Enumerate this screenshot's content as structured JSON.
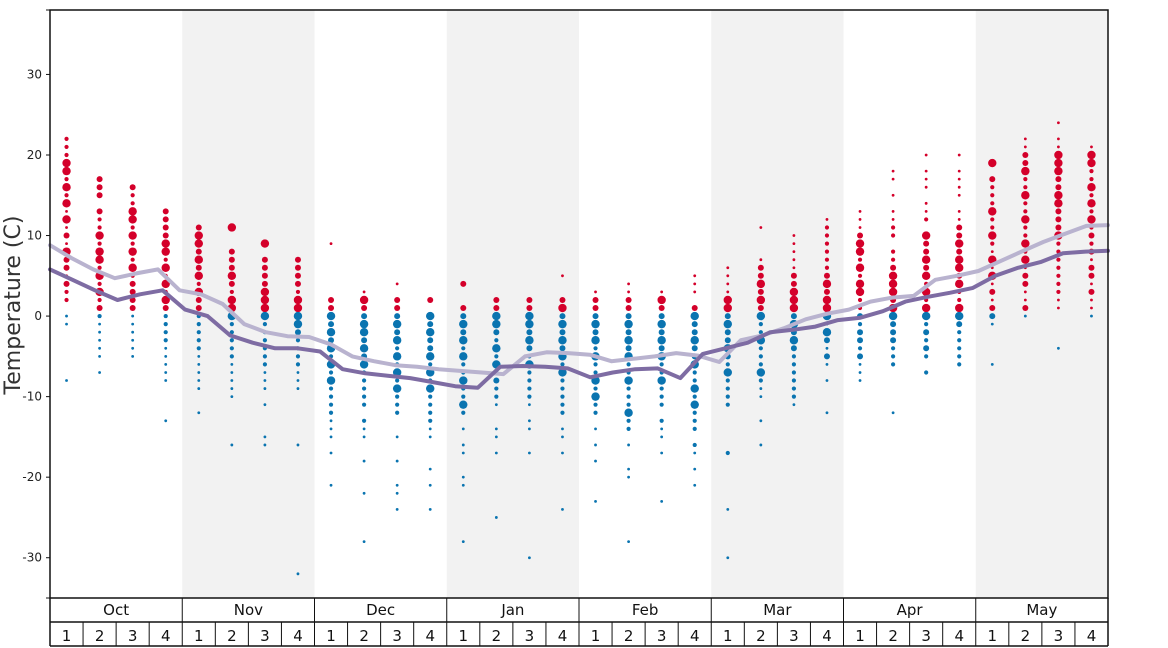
{
  "chart_data": {
    "type": "scatter",
    "title": "",
    "xlabel": "",
    "ylabel": "Temperature (C)",
    "ylim": [
      -35,
      38
    ],
    "yticks": [
      -30,
      -20,
      -10,
      0,
      10,
      20,
      30
    ],
    "grid": false,
    "colors": {
      "warm": "#d4002a",
      "cold": "#0a74b0",
      "line_light": "#b9b3cf",
      "line_dark": "#7e6ca3",
      "band": "#f2f2f2"
    },
    "months": [
      "Oct",
      "Nov",
      "Dec",
      "Jan",
      "Feb",
      "Mar",
      "Apr",
      "May"
    ],
    "weeks": [
      "1",
      "2",
      "3",
      "4"
    ],
    "series": [
      {
        "values": [
          8.8,
          7.2,
          5.8,
          4.7,
          5.3,
          5.8,
          3.2,
          2.7,
          1.5,
          -1.0,
          -2.0,
          -2.5,
          -2.6,
          -3.5,
          -5.0,
          -5.6,
          -6.1,
          -6.3,
          -6.6,
          -6.8,
          -7.0,
          -7.2,
          -5.0,
          -4.5,
          -4.6,
          -4.8,
          -5.6,
          -5.3,
          -5.0,
          -4.6,
          -4.9,
          -5.7,
          -3.0,
          -2.4,
          -1.5,
          -0.4,
          0.3,
          0.8,
          1.8,
          2.3,
          2.5,
          4.5,
          5.0,
          5.6,
          6.8,
          8.0,
          9.2,
          10.2,
          11.2,
          11.3
        ]
      },
      {
        "values": [
          5.8,
          4.5,
          3.2,
          2.0,
          2.7,
          3.2,
          0.8,
          0.0,
          -2.4,
          -3.3,
          -4.0,
          -4.0,
          -4.4,
          -6.6,
          -7.1,
          -7.4,
          -7.7,
          -8.2,
          -8.7,
          -8.9,
          -6.3,
          -6.2,
          -6.3,
          -6.5,
          -7.6,
          -7.0,
          -6.6,
          -6.5,
          -7.7,
          -4.7,
          -4.0,
          -3.3,
          -2.0,
          -1.7,
          -1.3,
          -0.5,
          -0.2,
          0.6,
          1.8,
          2.4,
          2.9,
          3.5,
          5.0,
          6.0,
          6.7,
          7.8,
          8.0,
          8.1
        ]
      }
    ],
    "points": [
      [
        [
          8,
          19,
          18,
          16,
          14,
          12,
          10,
          8,
          7,
          6,
          4,
          3,
          2,
          22,
          21,
          20,
          17,
          15,
          13,
          11,
          9,
          5,
          0,
          -1,
          -8
        ]
      ],
      [
        [
          10,
          8,
          7,
          5,
          3,
          1,
          17,
          16,
          15,
          13,
          12,
          11,
          9,
          6,
          4,
          2,
          0,
          -1,
          -2,
          -3,
          -4,
          -5,
          -7
        ]
      ],
      [
        [
          13,
          12,
          10,
          8,
          6,
          4,
          3,
          2,
          1,
          16,
          15,
          14,
          11,
          9,
          7,
          5,
          0,
          -1,
          -2,
          -3,
          -4,
          -5
        ]
      ],
      [
        [
          9,
          8,
          6,
          4,
          2,
          1,
          13,
          12,
          11,
          10,
          7,
          5,
          3,
          0,
          -1,
          -2,
          -3,
          -4,
          -5,
          -6,
          -7,
          -8,
          -13
        ]
      ],
      [
        [
          10,
          9,
          7,
          5,
          3,
          2,
          1,
          11,
          8,
          6,
          4,
          0,
          -1,
          -2,
          -3,
          -4,
          -5,
          -6,
          -7,
          -8,
          -9,
          -12
        ]
      ],
      [
        [
          5,
          2,
          1,
          0,
          11,
          8,
          7,
          6,
          4,
          3,
          -1,
          -2,
          -3,
          -4,
          -5,
          -6,
          -7,
          -8,
          -9,
          -10,
          -16
        ]
      ],
      [
        [
          3,
          2,
          1,
          0,
          9,
          7,
          6,
          5,
          4,
          -1,
          -2,
          -3,
          -4,
          -5,
          -6,
          -7,
          -8,
          -9,
          -11,
          -15,
          -16
        ]
      ],
      [
        [
          2,
          1,
          0,
          -1,
          -2,
          7,
          6,
          5,
          4,
          3,
          -3,
          -4,
          -5,
          -6,
          -7,
          -8,
          -9,
          -16,
          -32
        ]
      ],
      [
        [
          0,
          -2,
          -4,
          -6,
          -8,
          2,
          1,
          -1,
          -3,
          -5,
          -7,
          -9,
          -10,
          -11,
          -12,
          -13,
          -14,
          -15,
          -17,
          -21,
          9
        ]
      ],
      [
        [
          -1,
          -2,
          -4,
          -6,
          2,
          1,
          0,
          -3,
          -5,
          -7,
          -8,
          -9,
          -10,
          -11,
          -13,
          -14,
          -15,
          -18,
          -22,
          -28,
          3
        ]
      ],
      [
        [
          -1,
          -3,
          -5,
          -7,
          -9,
          2,
          1,
          0,
          -2,
          -4,
          -6,
          -8,
          -10,
          -11,
          -12,
          -15,
          -18,
          -21,
          -22,
          -24,
          4
        ]
      ],
      [
        [
          0,
          -2,
          -5,
          -7,
          -9,
          2,
          -1,
          -3,
          -4,
          -6,
          -8,
          -10,
          -11,
          -12,
          -13,
          -14,
          -15,
          -19,
          -21,
          -24
        ]
      ],
      [
        [
          -1,
          -3,
          -5,
          -8,
          -11,
          4,
          1,
          0,
          -2,
          -4,
          -6,
          -7,
          -9,
          -10,
          -12,
          -14,
          -16,
          -17,
          -20,
          -21,
          -28
        ]
      ],
      [
        [
          0,
          -1,
          -4,
          -6,
          -8,
          2,
          1,
          -2,
          -3,
          -5,
          -7,
          -9,
          -10,
          -11,
          -14,
          -15,
          -17,
          -25
        ]
      ],
      [
        [
          0,
          -1,
          -3,
          -6,
          1,
          2,
          -2,
          -4,
          -5,
          -7,
          -8,
          -9,
          -10,
          -11,
          -13,
          -14,
          -17,
          -30
        ]
      ],
      [
        [
          -1,
          -3,
          -5,
          -7,
          1,
          2,
          0,
          -2,
          -4,
          -6,
          -8,
          -9,
          -10,
          -11,
          -12,
          -14,
          -15,
          -17,
          -24,
          5
        ]
      ],
      [
        [
          -1,
          -3,
          -5,
          -8,
          -10,
          2,
          1,
          0,
          -2,
          -4,
          -6,
          -7,
          -9,
          -11,
          -12,
          -14,
          -16,
          -18,
          -23,
          3
        ]
      ],
      [
        [
          -1,
          -3,
          -5,
          -8,
          -12,
          2,
          1,
          0,
          -2,
          -4,
          -6,
          -7,
          -9,
          -10,
          -11,
          -13,
          -14,
          -16,
          -19,
          -20,
          -28,
          3,
          4
        ]
      ],
      [
        [
          -1,
          -3,
          -5,
          -8,
          2,
          1,
          0,
          -2,
          -4,
          -6,
          -7,
          -9,
          -10,
          -11,
          -13,
          -14,
          -15,
          -17,
          -23,
          3
        ]
      ],
      [
        [
          0,
          -3,
          -6,
          -9,
          -11,
          1,
          -1,
          -2,
          -4,
          -5,
          -7,
          -8,
          -10,
          -12,
          -13,
          -14,
          -16,
          -17,
          -19,
          -21,
          3,
          4,
          5
        ]
      ],
      [
        [
          -1,
          -4,
          -7,
          2,
          1,
          0,
          -2,
          -3,
          -5,
          -6,
          -8,
          -9,
          -10,
          -11,
          -17,
          -24,
          -30,
          6,
          5,
          4,
          3
        ]
      ],
      [
        [
          4,
          2,
          0,
          -3,
          -7,
          6,
          5,
          3,
          1,
          -1,
          -2,
          -4,
          -5,
          -6,
          -8,
          -9,
          -10,
          -13,
          -16,
          11,
          7
        ]
      ],
      [
        [
          3,
          2,
          1,
          -1,
          -3,
          4,
          5,
          0,
          -2,
          -4,
          -5,
          -6,
          -7,
          -8,
          -9,
          -10,
          -11,
          6,
          7,
          8,
          9,
          10
        ]
      ],
      [
        [
          1,
          2,
          4,
          0,
          -2,
          -3,
          -5,
          3,
          5,
          6,
          7,
          8,
          9,
          10,
          11,
          -1,
          -4,
          -6,
          -8,
          -12,
          12
        ]
      ],
      [
        [
          9,
          8,
          6,
          4,
          3,
          0,
          -2,
          -3,
          -5,
          10,
          7,
          5,
          2,
          1,
          -1,
          -4,
          -6,
          -7,
          -8,
          11,
          12,
          13
        ]
      ],
      [
        [
          4,
          3,
          5,
          1,
          0,
          -2,
          6,
          2,
          -1,
          -3,
          -4,
          -5,
          -6,
          7,
          8,
          10,
          11,
          12,
          13,
          15,
          17,
          18,
          -12
        ]
      ],
      [
        [
          10,
          7,
          5,
          3,
          1,
          0,
          -2,
          -4,
          9,
          8,
          6,
          4,
          2,
          -1,
          -3,
          -5,
          -7,
          12,
          13,
          14,
          16,
          17,
          18,
          20
        ]
      ],
      [
        [
          9,
          7,
          6,
          4,
          1,
          0,
          -1,
          11,
          10,
          8,
          5,
          3,
          2,
          -2,
          -3,
          -4,
          -5,
          -6,
          12,
          13,
          15,
          16,
          17,
          18,
          20
        ]
      ],
      [
        [
          19,
          13,
          10,
          7,
          5,
          3,
          1,
          0,
          17,
          16,
          15,
          14,
          12,
          11,
          9,
          8,
          6,
          4,
          2,
          -1,
          -6
        ]
      ],
      [
        [
          18,
          15,
          12,
          9,
          7,
          5,
          4,
          1,
          20,
          19,
          17,
          16,
          14,
          13,
          11,
          10,
          8,
          6,
          3,
          2,
          0,
          22,
          21
        ]
      ],
      [
        [
          18,
          15,
          14,
          10,
          20,
          19,
          17,
          16,
          13,
          12,
          11,
          9,
          8,
          7,
          6,
          5,
          4,
          3,
          2,
          1,
          22,
          21,
          24,
          -4
        ]
      ],
      [
        [
          20,
          19,
          16,
          14,
          12,
          10,
          8,
          6,
          5,
          3,
          18,
          17,
          15,
          13,
          11,
          9,
          7,
          4,
          2,
          1,
          0,
          21
        ]
      ]
    ]
  }
}
